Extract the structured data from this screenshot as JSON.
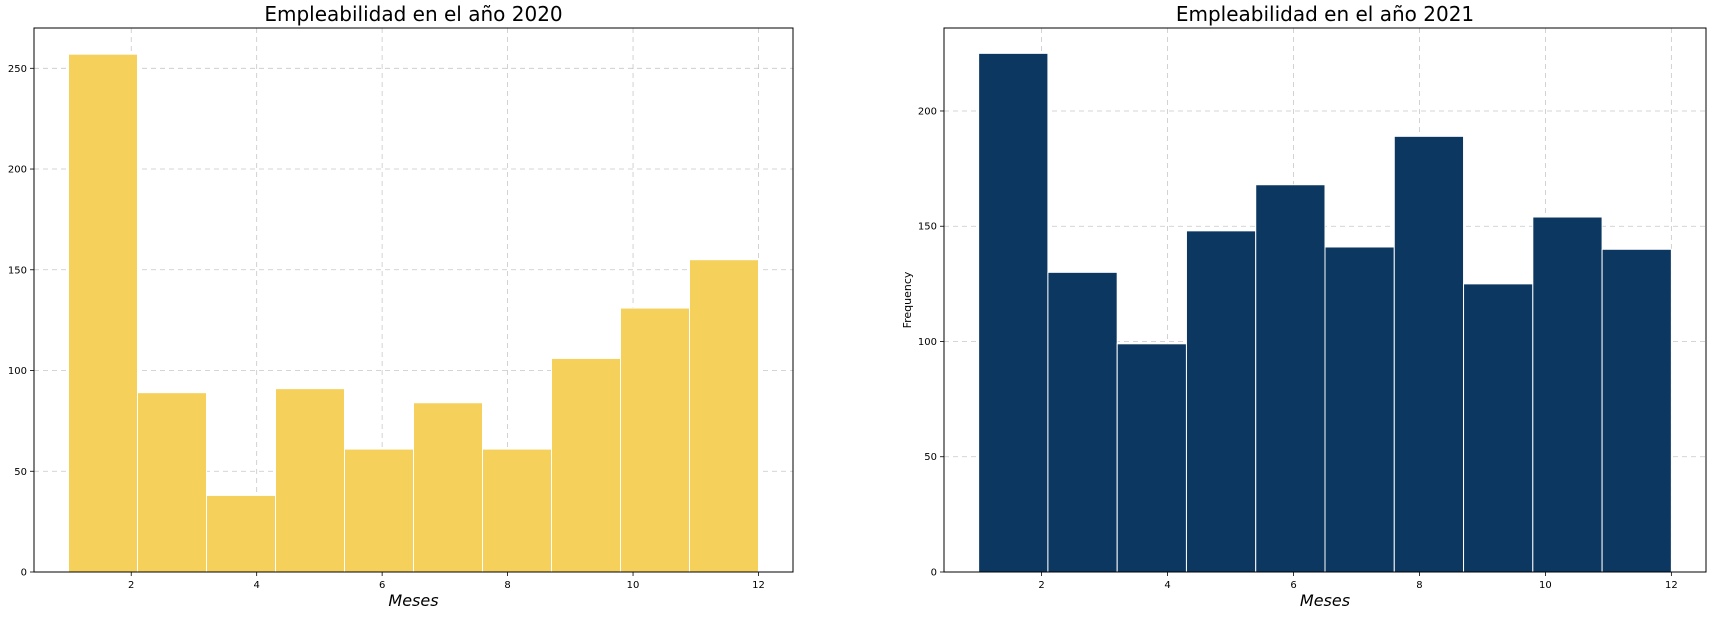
{
  "chart_data": [
    {
      "type": "bar",
      "title": "Empleabilidad en el año 2020",
      "xlabel": "Meses",
      "ylabel": "",
      "color": "#f5d05b",
      "bin_edges": [
        1,
        2.1,
        3.2,
        4.3,
        5.4,
        6.5,
        7.6,
        8.7,
        9.8,
        10.9,
        12
      ],
      "values": [
        257,
        89,
        38,
        91,
        61,
        84,
        61,
        106,
        131,
        155
      ],
      "xlim": [
        0.45,
        12.55
      ],
      "ylim": [
        0,
        270
      ],
      "xticks": [
        2,
        4,
        6,
        8,
        10,
        12
      ],
      "yticks": [
        0,
        50,
        100,
        150,
        200,
        250
      ],
      "grid": true
    },
    {
      "type": "bar",
      "title": "Empleabilidad en el año 2021",
      "xlabel": "Meses",
      "ylabel": "Frequency",
      "color": "#0b3761",
      "bin_edges": [
        1,
        2.1,
        3.2,
        4.3,
        5.4,
        6.5,
        7.6,
        8.7,
        9.8,
        10.9,
        12
      ],
      "values": [
        225,
        130,
        99,
        148,
        168,
        141,
        189,
        125,
        154,
        140
      ],
      "xlim": [
        0.45,
        12.55
      ],
      "ylim": [
        0,
        236
      ],
      "xticks": [
        2,
        4,
        6,
        8,
        10,
        12
      ],
      "yticks": [
        0,
        50,
        100,
        150,
        200
      ],
      "grid": true
    }
  ]
}
